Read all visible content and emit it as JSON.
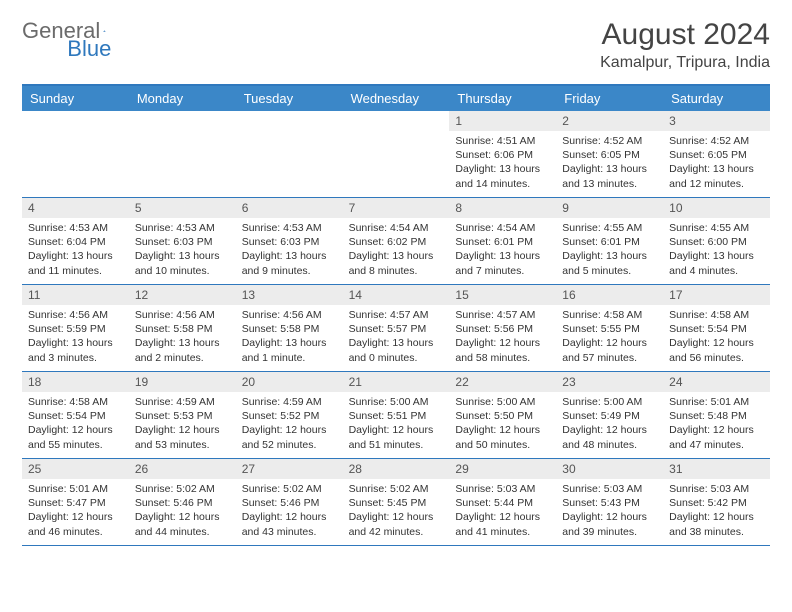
{
  "logo": {
    "text1": "General",
    "text2": "Blue"
  },
  "title": "August 2024",
  "location": "Kamalpur, Tripura, India",
  "colors": {
    "header_bg": "#3b87c8",
    "header_text": "#ffffff",
    "border": "#2f78bd",
    "daynum_bg": "#ececec",
    "body_text": "#333333",
    "logo_gray": "#6b6b6b",
    "logo_blue": "#2f78bd",
    "page_bg": "#ffffff"
  },
  "typography": {
    "title_fontsize": 30,
    "location_fontsize": 16,
    "dayheader_fontsize": 13,
    "daynum_fontsize": 12,
    "details_fontsize": 10.5
  },
  "day_names": [
    "Sunday",
    "Monday",
    "Tuesday",
    "Wednesday",
    "Thursday",
    "Friday",
    "Saturday"
  ],
  "weeks": [
    [
      {
        "day": "",
        "sunrise": "",
        "sunset": "",
        "daylight": ""
      },
      {
        "day": "",
        "sunrise": "",
        "sunset": "",
        "daylight": ""
      },
      {
        "day": "",
        "sunrise": "",
        "sunset": "",
        "daylight": ""
      },
      {
        "day": "",
        "sunrise": "",
        "sunset": "",
        "daylight": ""
      },
      {
        "day": "1",
        "sunrise": "Sunrise: 4:51 AM",
        "sunset": "Sunset: 6:06 PM",
        "daylight": "Daylight: 13 hours and 14 minutes."
      },
      {
        "day": "2",
        "sunrise": "Sunrise: 4:52 AM",
        "sunset": "Sunset: 6:05 PM",
        "daylight": "Daylight: 13 hours and 13 minutes."
      },
      {
        "day": "3",
        "sunrise": "Sunrise: 4:52 AM",
        "sunset": "Sunset: 6:05 PM",
        "daylight": "Daylight: 13 hours and 12 minutes."
      }
    ],
    [
      {
        "day": "4",
        "sunrise": "Sunrise: 4:53 AM",
        "sunset": "Sunset: 6:04 PM",
        "daylight": "Daylight: 13 hours and 11 minutes."
      },
      {
        "day": "5",
        "sunrise": "Sunrise: 4:53 AM",
        "sunset": "Sunset: 6:03 PM",
        "daylight": "Daylight: 13 hours and 10 minutes."
      },
      {
        "day": "6",
        "sunrise": "Sunrise: 4:53 AM",
        "sunset": "Sunset: 6:03 PM",
        "daylight": "Daylight: 13 hours and 9 minutes."
      },
      {
        "day": "7",
        "sunrise": "Sunrise: 4:54 AM",
        "sunset": "Sunset: 6:02 PM",
        "daylight": "Daylight: 13 hours and 8 minutes."
      },
      {
        "day": "8",
        "sunrise": "Sunrise: 4:54 AM",
        "sunset": "Sunset: 6:01 PM",
        "daylight": "Daylight: 13 hours and 7 minutes."
      },
      {
        "day": "9",
        "sunrise": "Sunrise: 4:55 AM",
        "sunset": "Sunset: 6:01 PM",
        "daylight": "Daylight: 13 hours and 5 minutes."
      },
      {
        "day": "10",
        "sunrise": "Sunrise: 4:55 AM",
        "sunset": "Sunset: 6:00 PM",
        "daylight": "Daylight: 13 hours and 4 minutes."
      }
    ],
    [
      {
        "day": "11",
        "sunrise": "Sunrise: 4:56 AM",
        "sunset": "Sunset: 5:59 PM",
        "daylight": "Daylight: 13 hours and 3 minutes."
      },
      {
        "day": "12",
        "sunrise": "Sunrise: 4:56 AM",
        "sunset": "Sunset: 5:58 PM",
        "daylight": "Daylight: 13 hours and 2 minutes."
      },
      {
        "day": "13",
        "sunrise": "Sunrise: 4:56 AM",
        "sunset": "Sunset: 5:58 PM",
        "daylight": "Daylight: 13 hours and 1 minute."
      },
      {
        "day": "14",
        "sunrise": "Sunrise: 4:57 AM",
        "sunset": "Sunset: 5:57 PM",
        "daylight": "Daylight: 13 hours and 0 minutes."
      },
      {
        "day": "15",
        "sunrise": "Sunrise: 4:57 AM",
        "sunset": "Sunset: 5:56 PM",
        "daylight": "Daylight: 12 hours and 58 minutes."
      },
      {
        "day": "16",
        "sunrise": "Sunrise: 4:58 AM",
        "sunset": "Sunset: 5:55 PM",
        "daylight": "Daylight: 12 hours and 57 minutes."
      },
      {
        "day": "17",
        "sunrise": "Sunrise: 4:58 AM",
        "sunset": "Sunset: 5:54 PM",
        "daylight": "Daylight: 12 hours and 56 minutes."
      }
    ],
    [
      {
        "day": "18",
        "sunrise": "Sunrise: 4:58 AM",
        "sunset": "Sunset: 5:54 PM",
        "daylight": "Daylight: 12 hours and 55 minutes."
      },
      {
        "day": "19",
        "sunrise": "Sunrise: 4:59 AM",
        "sunset": "Sunset: 5:53 PM",
        "daylight": "Daylight: 12 hours and 53 minutes."
      },
      {
        "day": "20",
        "sunrise": "Sunrise: 4:59 AM",
        "sunset": "Sunset: 5:52 PM",
        "daylight": "Daylight: 12 hours and 52 minutes."
      },
      {
        "day": "21",
        "sunrise": "Sunrise: 5:00 AM",
        "sunset": "Sunset: 5:51 PM",
        "daylight": "Daylight: 12 hours and 51 minutes."
      },
      {
        "day": "22",
        "sunrise": "Sunrise: 5:00 AM",
        "sunset": "Sunset: 5:50 PM",
        "daylight": "Daylight: 12 hours and 50 minutes."
      },
      {
        "day": "23",
        "sunrise": "Sunrise: 5:00 AM",
        "sunset": "Sunset: 5:49 PM",
        "daylight": "Daylight: 12 hours and 48 minutes."
      },
      {
        "day": "24",
        "sunrise": "Sunrise: 5:01 AM",
        "sunset": "Sunset: 5:48 PM",
        "daylight": "Daylight: 12 hours and 47 minutes."
      }
    ],
    [
      {
        "day": "25",
        "sunrise": "Sunrise: 5:01 AM",
        "sunset": "Sunset: 5:47 PM",
        "daylight": "Daylight: 12 hours and 46 minutes."
      },
      {
        "day": "26",
        "sunrise": "Sunrise: 5:02 AM",
        "sunset": "Sunset: 5:46 PM",
        "daylight": "Daylight: 12 hours and 44 minutes."
      },
      {
        "day": "27",
        "sunrise": "Sunrise: 5:02 AM",
        "sunset": "Sunset: 5:46 PM",
        "daylight": "Daylight: 12 hours and 43 minutes."
      },
      {
        "day": "28",
        "sunrise": "Sunrise: 5:02 AM",
        "sunset": "Sunset: 5:45 PM",
        "daylight": "Daylight: 12 hours and 42 minutes."
      },
      {
        "day": "29",
        "sunrise": "Sunrise: 5:03 AM",
        "sunset": "Sunset: 5:44 PM",
        "daylight": "Daylight: 12 hours and 41 minutes."
      },
      {
        "day": "30",
        "sunrise": "Sunrise: 5:03 AM",
        "sunset": "Sunset: 5:43 PM",
        "daylight": "Daylight: 12 hours and 39 minutes."
      },
      {
        "day": "31",
        "sunrise": "Sunrise: 5:03 AM",
        "sunset": "Sunset: 5:42 PM",
        "daylight": "Daylight: 12 hours and 38 minutes."
      }
    ]
  ]
}
